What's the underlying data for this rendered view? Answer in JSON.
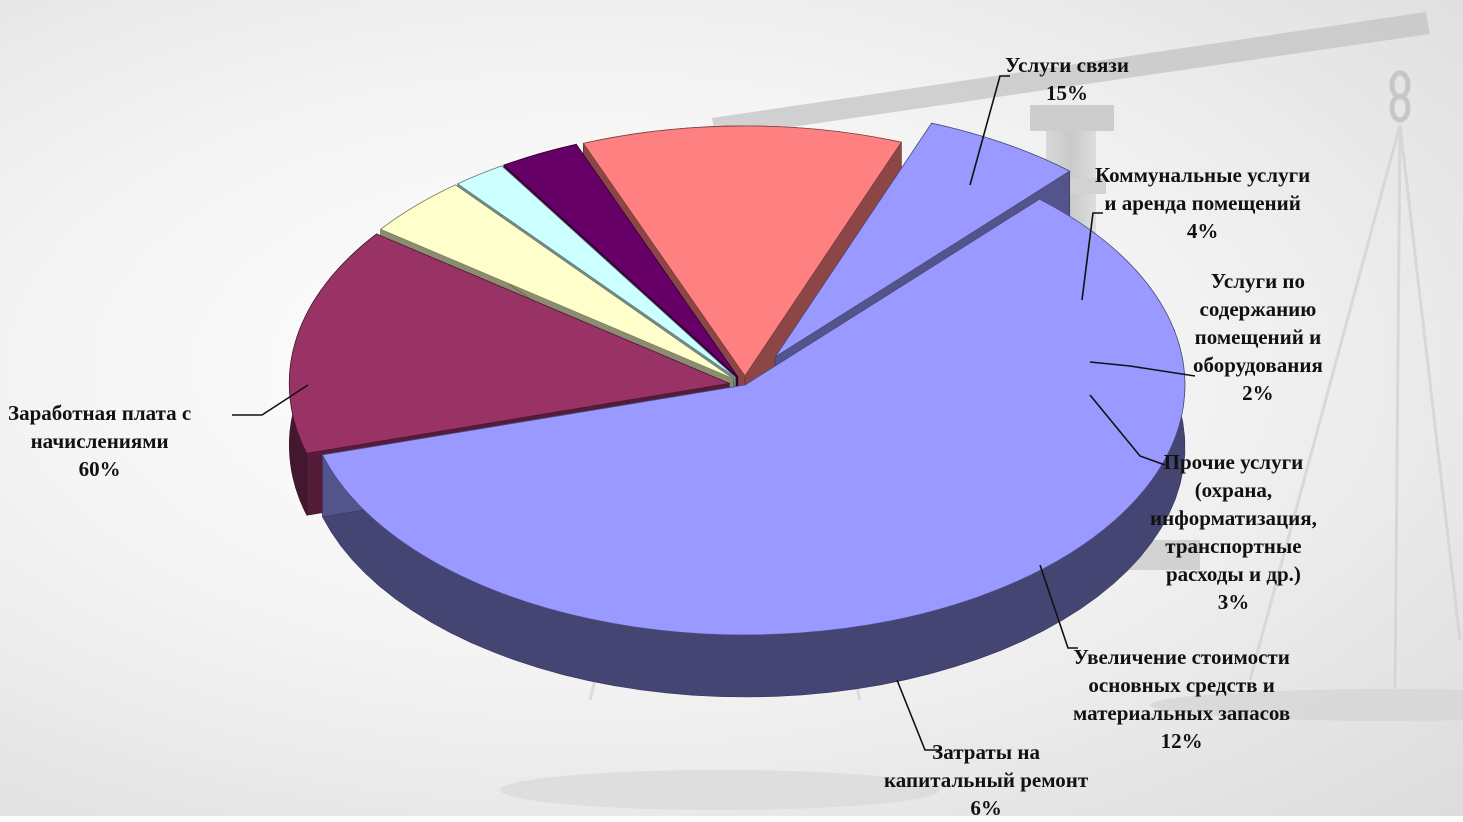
{
  "chart_data": {
    "type": "pie",
    "style": "3d-exploded",
    "labels": [
      "Заработная плата с\nначислениями",
      "Услуги связи",
      "Коммунальные услуги\nи аренда помещений",
      "Услуги по\nсодержанию\nпомещений и\nоборудования",
      "Прочие услуги\n(охрана,\nинформатизация,\nтранспортные\nрасходы и др.)",
      "Увеличение стоимости\nосновных средств и\nматериальных запасов",
      "Затраты на\nкапитальный ремонт"
    ],
    "values": [
      60,
      15,
      4,
      2,
      3,
      12,
      6
    ],
    "value_labels": [
      "60%",
      "15%",
      "4%",
      "2%",
      "3%",
      "12%",
      "6%"
    ],
    "colors": [
      "#9999ff",
      "#993366",
      "#ffffcc",
      "#ccffff",
      "#660066",
      "#ff8080",
      "#9999ff"
    ],
    "legend": "none"
  }
}
